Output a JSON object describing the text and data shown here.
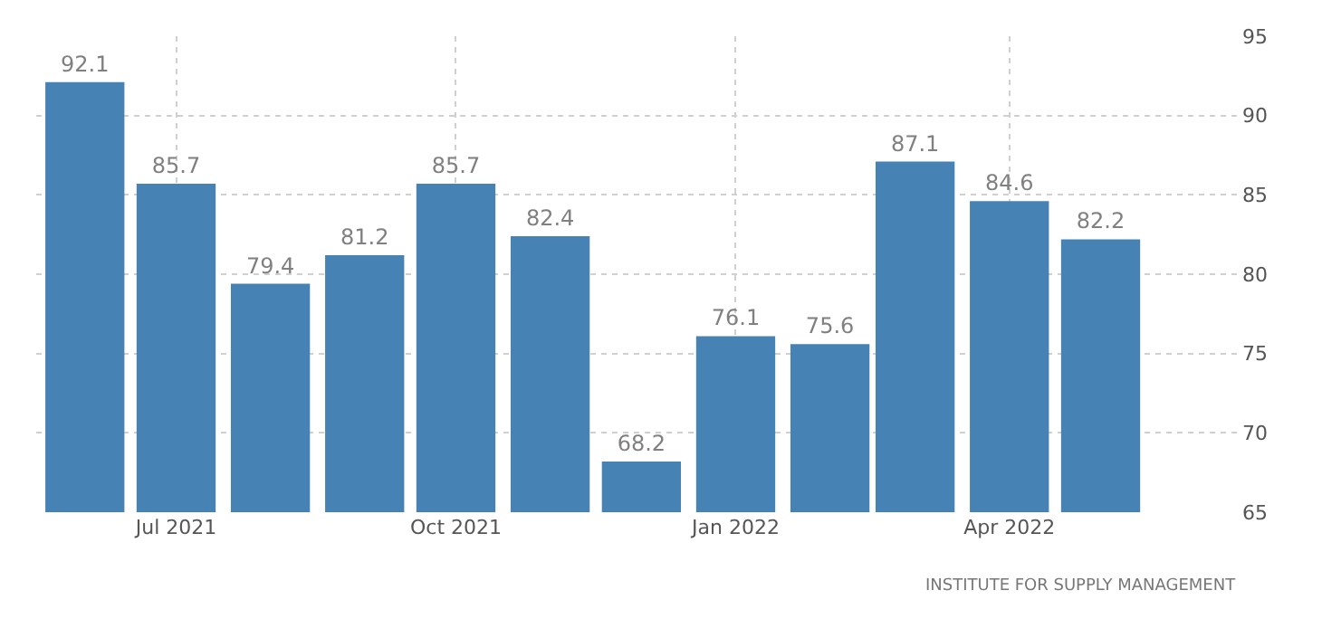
{
  "chart_data": {
    "type": "bar",
    "x": [
      "2021-06",
      "2021-07",
      "2021-08",
      "2021-09",
      "2021-10",
      "2021-11",
      "2021-12",
      "2022-01",
      "2022-02",
      "2022-03",
      "2022-04",
      "2022-05"
    ],
    "values": [
      92.1,
      85.7,
      79.4,
      81.2,
      85.7,
      82.4,
      68.2,
      76.1,
      75.6,
      87.1,
      84.6,
      82.2
    ],
    "color": "#4682b4",
    "xlim": [
      "2021-05-16",
      "2022-06-16"
    ],
    "xticks": [
      {
        "value": "2021-07",
        "label": "Jul 2021"
      },
      {
        "value": "2021-10",
        "label": "Oct 2021"
      },
      {
        "value": "2022-01",
        "label": "Jan 2022"
      },
      {
        "value": "2022-04",
        "label": "Apr 2022"
      }
    ],
    "ylim": [
      65,
      95
    ],
    "yticks": [
      65,
      70,
      75,
      80,
      85,
      90,
      95
    ],
    "grid": true,
    "data_labels": true,
    "annotations": [
      "INSTITUTE FOR SUPPLY MANAGEMENT"
    ]
  }
}
